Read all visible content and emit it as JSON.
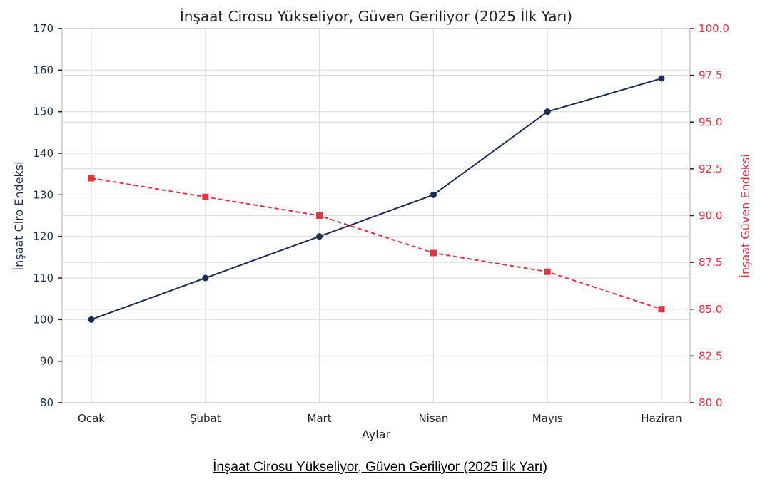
{
  "chart_data": {
    "type": "line",
    "title": "İnşaat Cirosu Yükseliyor, Güven Geriliyor (2025 İlk Yarı)",
    "xlabel": "Aylar",
    "ylabel": "İnşaat Ciro Endeksi",
    "y2label": "İnşaat Güven Endeksi",
    "categories": [
      "Ocak",
      "Şubat",
      "Mart",
      "Nisan",
      "Mayıs",
      "Haziran"
    ],
    "ylim": [
      80,
      170
    ],
    "y2lim": [
      80,
      100
    ],
    "yticks": [
      "80",
      "90",
      "100",
      "110",
      "120",
      "130",
      "140",
      "150",
      "160",
      "170"
    ],
    "y2ticks": [
      "80.0",
      "82.5",
      "85.0",
      "87.5",
      "90.0",
      "92.5",
      "95.0",
      "97.5",
      "100.0"
    ],
    "grid": true,
    "series": [
      {
        "name": "İnşaat Ciro Endeksi",
        "axis": "left",
        "values": [
          100,
          110,
          120,
          130,
          150,
          158
        ],
        "color": "#1b2d55",
        "style": "solid",
        "marker": "circle"
      },
      {
        "name": "İnşaat Güven Endeksi",
        "axis": "right",
        "values": [
          92,
          91,
          90,
          88,
          87,
          85
        ],
        "color": "#e8313f",
        "style": "dashed",
        "marker": "square"
      }
    ]
  },
  "caption": "İnşaat Cirosu Yükseliyor, Güven Geriliyor (2025 İlk Yarı)"
}
